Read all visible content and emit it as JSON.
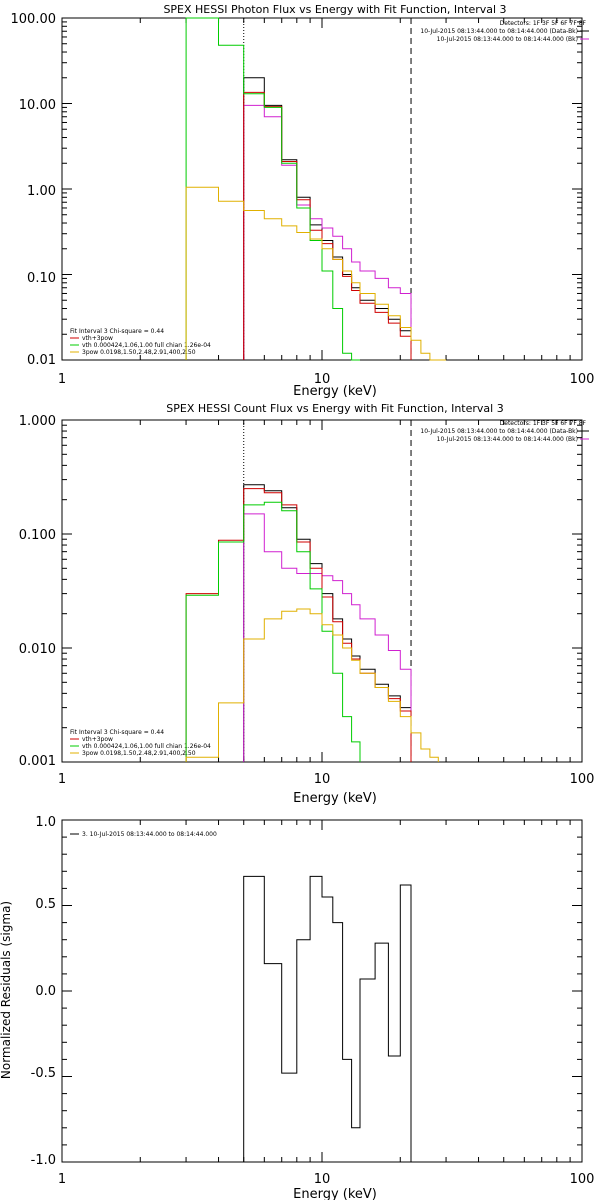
{
  "chart_data": [
    {
      "type": "line",
      "title": "SPEX HESSI Photon Flux vs Energy with Fit Function, Interval 3",
      "xlabel": "Energy (keV)",
      "ylabel": "",
      "xscale": "log",
      "yscale": "log",
      "xlim": [
        1,
        100
      ],
      "ylim": [
        0.01,
        100
      ],
      "yticks": [
        "0.01",
        "0.10",
        "1.00",
        "10.00",
        "100.00"
      ],
      "xticks": [
        "1",
        "10",
        "100"
      ],
      "vlines": [
        {
          "x": 5.0,
          "style": "dotted"
        },
        {
          "x": 22.0,
          "style": "dashed"
        }
      ],
      "header": [
        "Detectors: 1F 3F 5F 6F 7F 8F",
        "10-Jul-2015 08:13:44.000 to 08:14:44.000 (Data-Bk)",
        "10-Jul-2015 08:13:44.000 to 08:14:44.000 (Bk)"
      ],
      "header_line_colors": [
        "",
        "#000000",
        "#d020d0"
      ],
      "legend_position": "bottom-left",
      "legend": [
        {
          "text": "Fit Interval 3   Chi-square = 0.44",
          "color": ""
        },
        {
          "text": "vth+3pow",
          "color": "#d00000"
        },
        {
          "text": "vth 0.000424,1.06,1.00  full chian 1.26e-04",
          "color": "#00cc00"
        },
        {
          "text": "3pow 0.0198,1.50,2.48,2.91,400,2.50",
          "color": "#e0b000"
        }
      ],
      "edges": [
        3.0,
        4.0,
        5.0,
        6.0,
        7.0,
        8.0,
        9.0,
        10.0,
        11.0,
        12.0,
        13.0,
        14.0,
        16.0,
        18.0,
        20.0,
        22.0,
        24.0,
        26.0,
        28.0,
        30.0
      ],
      "series": [
        {
          "name": "Data-Bk",
          "color": "#000000",
          "values": [
            null,
            null,
            20,
            9.5,
            2.2,
            0.8,
            0.38,
            0.25,
            0.16,
            0.1,
            0.07,
            0.05,
            0.04,
            0.03,
            0.022,
            null,
            null,
            null,
            null
          ]
        },
        {
          "name": "Bk",
          "color": "#d020d0",
          "values": [
            null,
            null,
            9.5,
            7.0,
            1.9,
            0.65,
            0.45,
            0.35,
            0.28,
            0.2,
            0.14,
            0.11,
            0.09,
            0.07,
            0.06,
            null,
            null,
            null,
            null
          ]
        },
        {
          "name": "vth+3pow",
          "color": "#d00000",
          "values": [
            null,
            null,
            13.5,
            9.2,
            2.1,
            0.75,
            0.33,
            0.23,
            0.15,
            0.095,
            0.065,
            0.046,
            0.036,
            0.027,
            0.019,
            null,
            null,
            null,
            null
          ]
        },
        {
          "name": "vth",
          "color": "#00cc00",
          "values": [
            150,
            48,
            13,
            9.0,
            2.0,
            0.6,
            0.25,
            0.11,
            0.04,
            0.012,
            0.004,
            null,
            null,
            null,
            null,
            null,
            null,
            null,
            null
          ]
        },
        {
          "name": "3pow",
          "color": "#e0b000",
          "values": [
            1.05,
            0.72,
            0.56,
            0.45,
            0.37,
            0.31,
            0.26,
            0.2,
            0.15,
            0.11,
            0.08,
            0.06,
            0.045,
            0.033,
            0.024,
            0.017,
            0.012,
            0.009,
            0.007
          ]
        }
      ]
    },
    {
      "type": "line",
      "title": "SPEX HESSI Count Flux vs Energy with Fit Function, Interval 3",
      "xlabel": "Energy (keV)",
      "ylabel": "",
      "xscale": "log",
      "yscale": "log",
      "xlim": [
        1,
        100
      ],
      "ylim": [
        0.001,
        1
      ],
      "yticks": [
        "0.001",
        "0.010",
        "0.100",
        "1.000"
      ],
      "xticks": [
        "1",
        "10",
        "100"
      ],
      "vlines": [
        {
          "x": 5.0,
          "style": "dotted"
        },
        {
          "x": 22.0,
          "style": "dashed"
        }
      ],
      "header": [
        "Detectors: 1F 3F 5F 6F 7F 8F",
        "10-Jul-2015 08:13:44.000 to 08:14:44.000 (Data-Bk)",
        "10-Jul-2015 08:13:44.000 to 08:14:44.000 (Bk)"
      ],
      "header_line_colors": [
        "",
        "#000000",
        "#d020d0"
      ],
      "legend_position": "bottom-left",
      "legend": [
        {
          "text": "Fit Interval 3   Chi-square = 0.44",
          "color": ""
        },
        {
          "text": "vth+3pow",
          "color": "#d00000"
        },
        {
          "text": "vth 0.000424,1.06,1.00  full chian 1.26e-04",
          "color": "#00cc00"
        },
        {
          "text": "3pow 0.0198,1.50,2.48,2.91,400,2.50",
          "color": "#e0b000"
        }
      ],
      "edges": [
        3.0,
        4.0,
        5.0,
        6.0,
        7.0,
        8.0,
        9.0,
        10.0,
        11.0,
        12.0,
        13.0,
        14.0,
        16.0,
        18.0,
        20.0,
        22.0,
        24.0,
        26.0,
        28.0,
        30.0
      ],
      "series": [
        {
          "name": "Data-Bk",
          "color": "#000000",
          "values": [
            null,
            null,
            0.27,
            0.24,
            0.17,
            0.09,
            0.055,
            0.03,
            0.018,
            0.012,
            0.0085,
            0.0065,
            0.0048,
            0.0038,
            0.003,
            null,
            null,
            null,
            null
          ]
        },
        {
          "name": "Bk",
          "color": "#d020d0",
          "values": [
            null,
            null,
            0.15,
            0.07,
            0.05,
            0.045,
            0.045,
            0.043,
            0.039,
            0.03,
            0.024,
            0.018,
            0.013,
            0.0095,
            0.0065,
            null,
            null,
            null,
            null
          ]
        },
        {
          "name": "vth+3pow",
          "color": "#d00000",
          "values": [
            0.03,
            0.088,
            0.25,
            0.23,
            0.18,
            0.085,
            0.05,
            0.028,
            0.017,
            0.011,
            0.008,
            0.006,
            0.0045,
            0.0036,
            0.0028,
            null,
            null,
            null,
            null
          ]
        },
        {
          "name": "vth",
          "color": "#00cc00",
          "values": [
            0.029,
            0.085,
            0.18,
            0.19,
            0.16,
            0.07,
            0.033,
            0.014,
            0.006,
            0.0025,
            0.0015,
            null,
            null,
            null,
            null,
            null,
            null,
            null,
            null
          ]
        },
        {
          "name": "3pow",
          "color": "#e0b000",
          "values": [
            0.0011,
            0.0033,
            0.012,
            0.018,
            0.021,
            0.022,
            0.02,
            0.016,
            0.013,
            0.01,
            0.0078,
            0.006,
            0.0045,
            0.0034,
            0.0025,
            0.0018,
            0.0013,
            0.0011,
            null
          ]
        }
      ]
    },
    {
      "type": "line",
      "title": "",
      "xlabel": "Energy (keV)",
      "ylabel": "Normalized Residuals (sigma)",
      "xscale": "log",
      "yscale": "linear",
      "xlim": [
        1,
        100
      ],
      "ylim": [
        -1.0,
        1.0
      ],
      "yticks": [
        "-1.0",
        "-0.5",
        "0.0",
        "0.5",
        "1.0"
      ],
      "xticks": [
        "1",
        "10",
        "100"
      ],
      "legend_position": "top-left",
      "legend": [
        {
          "text": "3. 10-Jul-2015 08:13:44.000 to 08:14:44.000",
          "color": "#000000"
        }
      ],
      "edges": [
        5.0,
        6.0,
        7.0,
        8.0,
        9.0,
        10.0,
        11.0,
        12.0,
        13.0,
        14.0,
        16.0,
        18.0,
        20.0,
        22.0
      ],
      "series": [
        {
          "name": "",
          "color": "#000000",
          "values": [
            0.67,
            0.16,
            -0.48,
            0.3,
            0.67,
            0.55,
            0.4,
            -0.4,
            -0.8,
            0.07,
            0.28,
            -0.38,
            0.62
          ]
        }
      ]
    }
  ]
}
